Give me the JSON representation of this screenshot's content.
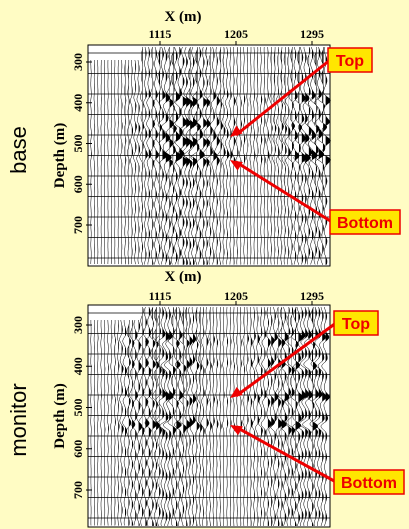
{
  "panels": [
    {
      "side_label": "base",
      "x_axis_label": "X (m)",
      "y_axis_label": "Depth (m)",
      "xticks": [
        1115,
        1205,
        1295
      ],
      "yticks": [
        300,
        400,
        500,
        600,
        700
      ],
      "callouts": [
        "Top",
        "Bottom"
      ]
    },
    {
      "side_label": "monitor",
      "x_axis_label": "X (m)",
      "y_axis_label": "Depth (m)",
      "xticks": [
        1115,
        1205,
        1295
      ],
      "yticks": [
        300,
        400,
        500,
        600,
        700
      ],
      "callouts": [
        "Top",
        "Bottom"
      ]
    }
  ]
}
